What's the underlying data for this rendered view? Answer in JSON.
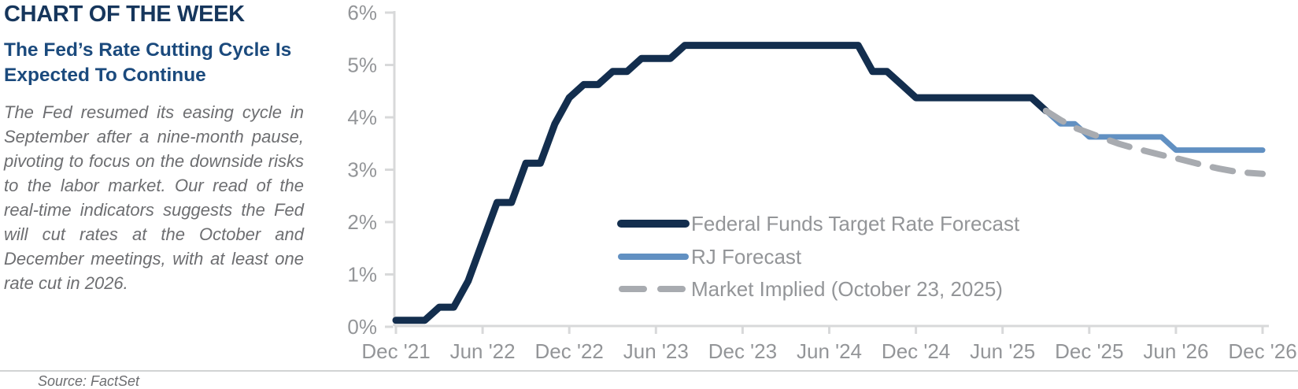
{
  "header": {
    "kicker": "CHART OF THE WEEK",
    "headline": "The Fed’s Rate Cutting Cycle Is Expected To Continue",
    "summary": "The Fed resumed its easing cycle in September after a nine-month pause, pivoting to focus on the downside risks to the labor market. Our read of the real-time indicators suggests the Fed will cut rates at the October and December meetings, with at least one rate cut in 2026."
  },
  "footer": {
    "source": "Source: FactSet"
  },
  "colors": {
    "kicker_navy": "#16365c",
    "headline_blue": "#1b4a7d",
    "body_gray": "#6d6e71",
    "axis_gray": "#d8d9da",
    "tick_label_gray": "#939598"
  },
  "chart_data": {
    "type": "line",
    "title": "",
    "xlabel": "",
    "ylabel": "",
    "ylim": [
      0,
      6
    ],
    "grid": false,
    "legend_position": "center-inside",
    "y_tick_labels": [
      "0%",
      "1%",
      "2%",
      "3%",
      "4%",
      "5%",
      "6%"
    ],
    "x_tick_labels": [
      "Dec '21",
      "Jun '22",
      "Dec '22",
      "Jun '23",
      "Dec '23",
      "Jun '24",
      "Dec '24",
      "Jun '25",
      "Dec '25",
      "Jun '26",
      "Dec '26"
    ],
    "x_unit": "months since Dec 2021, 6-month tick spacing",
    "series": [
      {
        "name": "Federal Funds Target Rate Forecast",
        "color": "#132e4e",
        "style": "solid",
        "width": 9,
        "points": [
          [
            0,
            0.125
          ],
          [
            2,
            0.125
          ],
          [
            3,
            0.375
          ],
          [
            4,
            0.375
          ],
          [
            5,
            0.875
          ],
          [
            6,
            1.625
          ],
          [
            7,
            2.375
          ],
          [
            8,
            2.375
          ],
          [
            9,
            3.125
          ],
          [
            10,
            3.125
          ],
          [
            11,
            3.875
          ],
          [
            12,
            4.375
          ],
          [
            13,
            4.625
          ],
          [
            14,
            4.625
          ],
          [
            15,
            4.875
          ],
          [
            16,
            4.875
          ],
          [
            17,
            5.125
          ],
          [
            19,
            5.125
          ],
          [
            20,
            5.375
          ],
          [
            32,
            5.375
          ],
          [
            33,
            4.875
          ],
          [
            34,
            4.875
          ],
          [
            35,
            4.625
          ],
          [
            36,
            4.375
          ],
          [
            44,
            4.375
          ],
          [
            45,
            4.125
          ]
        ]
      },
      {
        "name": "RJ Forecast",
        "color": "#6190c2",
        "style": "solid",
        "width": 7,
        "points": [
          [
            45,
            4.125
          ],
          [
            46,
            3.875
          ],
          [
            47,
            3.875
          ],
          [
            48,
            3.625
          ],
          [
            53,
            3.625
          ],
          [
            54,
            3.375
          ],
          [
            60,
            3.375
          ]
        ]
      },
      {
        "name": "Market Implied (October 23, 2025)",
        "color": "#a8abb0",
        "style": "dashed",
        "width": 8,
        "points": [
          [
            45,
            4.125
          ],
          [
            46,
            3.95
          ],
          [
            47,
            3.8
          ],
          [
            48,
            3.7
          ],
          [
            49,
            3.6
          ],
          [
            50,
            3.5
          ],
          [
            51,
            3.42
          ],
          [
            52,
            3.35
          ],
          [
            53,
            3.28
          ],
          [
            54,
            3.22
          ],
          [
            55,
            3.15
          ],
          [
            56,
            3.08
          ],
          [
            57,
            3.02
          ],
          [
            58,
            2.97
          ],
          [
            59,
            2.94
          ],
          [
            60,
            2.92
          ]
        ]
      }
    ]
  }
}
